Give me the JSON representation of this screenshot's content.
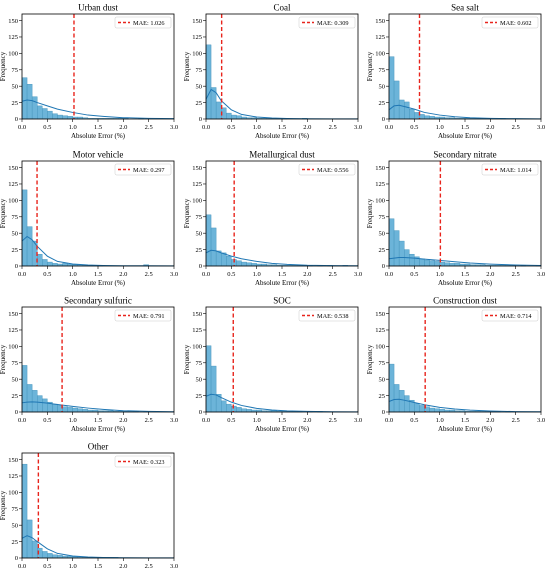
{
  "figure": {
    "colors": {
      "bar_fill": "#6cb4d9",
      "bar_edge": "#3f8fb8",
      "kde_line": "#1f77b4",
      "mae_line": "#e8241c",
      "axis": "#000000"
    }
  },
  "chart_data": [
    {
      "type": "histogram",
      "title": "Urban dust",
      "xlabel": "Absolute Error (%)",
      "ylabel": "Frequency",
      "xlim": [
        0,
        3
      ],
      "ylim": [
        0,
        160
      ],
      "xticks": [
        "0.0",
        "0.5",
        "1.0",
        "1.5",
        "2.0",
        "2.5",
        "3.0"
      ],
      "yticks": [
        "0",
        "25",
        "50",
        "75",
        "100",
        "125",
        "150"
      ],
      "bin_width": 0.1,
      "counts": [
        63,
        53,
        34,
        20,
        16,
        12,
        8,
        6,
        5,
        4,
        3,
        3,
        2,
        1,
        1,
        1,
        1,
        1,
        1,
        1,
        1,
        0,
        0,
        1,
        0,
        0,
        0,
        0,
        0,
        0
      ],
      "kde": [
        [
          0,
          27
        ],
        [
          0.1,
          29
        ],
        [
          0.2,
          28
        ],
        [
          0.3,
          25
        ],
        [
          0.5,
          20
        ],
        [
          0.7,
          15
        ],
        [
          1.0,
          10
        ],
        [
          1.3,
          6
        ],
        [
          1.6,
          4
        ],
        [
          2.0,
          2
        ],
        [
          2.5,
          1
        ],
        [
          3.0,
          0.5
        ]
      ],
      "mae": 1.026,
      "legend": "MAE: 1.026",
      "legend_position": "upper right"
    },
    {
      "type": "histogram",
      "title": "Coal",
      "xlabel": "Absolute Error (%)",
      "ylabel": "Frequency",
      "xlim": [
        0,
        3
      ],
      "ylim": [
        0,
        160
      ],
      "xticks": [
        "0.0",
        "0.5",
        "1.0",
        "1.5",
        "2.0",
        "2.5",
        "3.0"
      ],
      "yticks": [
        "0",
        "25",
        "50",
        "75",
        "100",
        "125",
        "150"
      ],
      "bin_width": 0.1,
      "counts": [
        113,
        48,
        26,
        17,
        9,
        6,
        5,
        3,
        2,
        2,
        1,
        1,
        1,
        1,
        1,
        1,
        0,
        0,
        0,
        1,
        0,
        0,
        0,
        0,
        0,
        0,
        0,
        0,
        0,
        0
      ],
      "kde": [
        [
          0,
          30
        ],
        [
          0.1,
          45
        ],
        [
          0.2,
          40
        ],
        [
          0.3,
          28
        ],
        [
          0.5,
          14
        ],
        [
          0.7,
          7
        ],
        [
          1.0,
          3
        ],
        [
          1.3,
          1.5
        ],
        [
          1.6,
          0.8
        ],
        [
          2.0,
          0.4
        ],
        [
          2.5,
          0.2
        ],
        [
          3.0,
          0.1
        ]
      ],
      "mae": 0.309,
      "legend": "MAE: 0.309",
      "legend_position": "upper right"
    },
    {
      "type": "histogram",
      "title": "Sea salt",
      "xlabel": "Absolute Error (%)",
      "ylabel": "Frequency",
      "xlim": [
        0,
        3
      ],
      "ylim": [
        0,
        160
      ],
      "xticks": [
        "0.0",
        "0.5",
        "1.0",
        "1.5",
        "2.0",
        "2.5",
        "3.0"
      ],
      "yticks": [
        "0",
        "25",
        "50",
        "75",
        "100",
        "125",
        "150"
      ],
      "bin_width": 0.1,
      "counts": [
        95,
        58,
        29,
        26,
        15,
        10,
        7,
        5,
        4,
        3,
        3,
        2,
        2,
        1,
        1,
        1,
        1,
        1,
        1,
        1,
        0,
        0,
        1,
        0,
        0,
        0,
        0,
        0,
        0,
        0
      ],
      "kde": [
        [
          0,
          14
        ],
        [
          0.1,
          20
        ],
        [
          0.2,
          21
        ],
        [
          0.3,
          19
        ],
        [
          0.5,
          15
        ],
        [
          0.7,
          10
        ],
        [
          1.0,
          6
        ],
        [
          1.3,
          3.5
        ],
        [
          1.6,
          2
        ],
        [
          2.0,
          1
        ],
        [
          2.5,
          0.5
        ],
        [
          3.0,
          0.2
        ]
      ],
      "mae": 0.602,
      "legend": "MAE: 0.602",
      "legend_position": "upper right"
    },
    {
      "type": "histogram",
      "title": "Motor vehicle",
      "xlabel": "Absolute Error (%)",
      "ylabel": "Frequency",
      "xlim": [
        0,
        3
      ],
      "ylim": [
        0,
        160
      ],
      "xticks": [
        "0.0",
        "0.5",
        "1.0",
        "1.5",
        "2.0",
        "2.5",
        "3.0"
      ],
      "yticks": [
        "0",
        "25",
        "50",
        "75",
        "100",
        "125",
        "150"
      ],
      "bin_width": 0.1,
      "counts": [
        116,
        60,
        38,
        18,
        10,
        6,
        4,
        3,
        4,
        3,
        2,
        2,
        1,
        1,
        1,
        1,
        0,
        0,
        0,
        0,
        0,
        0,
        0,
        0,
        2,
        0,
        0,
        0,
        0,
        0
      ],
      "kde": [
        [
          0,
          38
        ],
        [
          0.1,
          45
        ],
        [
          0.2,
          40
        ],
        [
          0.3,
          30
        ],
        [
          0.5,
          15
        ],
        [
          0.7,
          7
        ],
        [
          1.0,
          3
        ],
        [
          1.3,
          1.5
        ],
        [
          1.6,
          0.8
        ],
        [
          2.0,
          0.4
        ],
        [
          2.5,
          0.3
        ],
        [
          3.0,
          0.1
        ]
      ],
      "mae": 0.297,
      "legend": "MAE: 0.297",
      "legend_position": "upper right"
    },
    {
      "type": "histogram",
      "title": "Metallurgical dust",
      "xlabel": "Absolute Error (%)",
      "ylabel": "Frequency",
      "xlim": [
        0,
        3
      ],
      "ylim": [
        0,
        160
      ],
      "xticks": [
        "0.0",
        "0.5",
        "1.0",
        "1.5",
        "2.0",
        "2.5",
        "3.0"
      ],
      "yticks": [
        "0",
        "25",
        "50",
        "75",
        "100",
        "125",
        "150"
      ],
      "bin_width": 0.1,
      "counts": [
        78,
        58,
        23,
        20,
        15,
        10,
        8,
        6,
        5,
        4,
        3,
        3,
        2,
        2,
        1,
        1,
        1,
        1,
        1,
        1,
        1,
        0,
        1,
        0,
        1,
        0,
        0,
        1,
        0,
        0
      ],
      "kde": [
        [
          0,
          20
        ],
        [
          0.1,
          24
        ],
        [
          0.2,
          23
        ],
        [
          0.3,
          20
        ],
        [
          0.5,
          15
        ],
        [
          0.7,
          11
        ],
        [
          1.0,
          7
        ],
        [
          1.3,
          4
        ],
        [
          1.6,
          2.5
        ],
        [
          2.0,
          1.2
        ],
        [
          2.5,
          0.6
        ],
        [
          3.0,
          0.3
        ]
      ],
      "mae": 0.556,
      "legend": "MAE: 0.556",
      "legend_position": "upper right"
    },
    {
      "type": "histogram",
      "title": "Secondary nitrate",
      "xlabel": "Absolute Error (%)",
      "ylabel": "Frequency",
      "xlim": [
        0,
        3
      ],
      "ylim": [
        0,
        160
      ],
      "xticks": [
        "0.0",
        "0.5",
        "1.0",
        "1.5",
        "2.0",
        "2.5",
        "3.0"
      ],
      "yticks": [
        "0",
        "25",
        "50",
        "75",
        "100",
        "125",
        "150"
      ],
      "bin_width": 0.1,
      "counts": [
        72,
        54,
        38,
        25,
        18,
        14,
        11,
        9,
        8,
        7,
        6,
        5,
        4,
        4,
        3,
        3,
        2,
        2,
        2,
        1,
        1,
        1,
        1,
        1,
        1,
        0,
        1,
        0,
        0,
        1
      ],
      "kde": [
        [
          0,
          11
        ],
        [
          0.1,
          12
        ],
        [
          0.2,
          13
        ],
        [
          0.3,
          13
        ],
        [
          0.5,
          12
        ],
        [
          0.7,
          10.5
        ],
        [
          1.0,
          8.5
        ],
        [
          1.3,
          6.5
        ],
        [
          1.6,
          4.5
        ],
        [
          2.0,
          2.8
        ],
        [
          2.5,
          1.5
        ],
        [
          3.0,
          0.8
        ]
      ],
      "mae": 1.014,
      "legend": "MAE: 1.014",
      "legend_position": "upper right"
    },
    {
      "type": "histogram",
      "title": "Secondary sulfuric",
      "xlabel": "Absolute Error (%)",
      "ylabel": "Frequency",
      "xlim": [
        0,
        3
      ],
      "ylim": [
        0,
        160
      ],
      "xticks": [
        "0.0",
        "0.5",
        "1.0",
        "1.5",
        "2.0",
        "2.5",
        "3.0"
      ],
      "yticks": [
        "0",
        "25",
        "50",
        "75",
        "100",
        "125",
        "150"
      ],
      "bin_width": 0.1,
      "counts": [
        71,
        42,
        33,
        25,
        20,
        15,
        12,
        10,
        8,
        7,
        6,
        5,
        4,
        3,
        3,
        2,
        2,
        2,
        1,
        1,
        1,
        1,
        1,
        0,
        1,
        0,
        0,
        0,
        0,
        0
      ],
      "kde": [
        [
          0,
          14
        ],
        [
          0.1,
          15
        ],
        [
          0.2,
          15.5
        ],
        [
          0.3,
          15
        ],
        [
          0.5,
          13.5
        ],
        [
          0.7,
          11.5
        ],
        [
          1.0,
          8.5
        ],
        [
          1.3,
          6
        ],
        [
          1.6,
          4
        ],
        [
          2.0,
          2
        ],
        [
          2.5,
          0.9
        ],
        [
          3.0,
          0.4
        ]
      ],
      "mae": 0.791,
      "legend": "MAE: 0.791",
      "legend_position": "upper right"
    },
    {
      "type": "histogram",
      "title": "SOC",
      "xlabel": "Absolute Error (%)",
      "ylabel": "Frequency",
      "xlim": [
        0,
        3
      ],
      "ylim": [
        0,
        160
      ],
      "xticks": [
        "0.0",
        "0.5",
        "1.0",
        "1.5",
        "2.0",
        "2.5",
        "3.0"
      ],
      "yticks": [
        "0",
        "25",
        "50",
        "75",
        "100",
        "125",
        "150"
      ],
      "bin_width": 0.1,
      "counts": [
        101,
        70,
        27,
        17,
        12,
        9,
        7,
        5,
        4,
        3,
        3,
        2,
        2,
        2,
        1,
        1,
        1,
        1,
        1,
        0,
        1,
        0,
        1,
        0,
        0,
        0,
        0,
        0,
        0,
        0
      ],
      "kde": [
        [
          0,
          24
        ],
        [
          0.1,
          27
        ],
        [
          0.2,
          26
        ],
        [
          0.3,
          22
        ],
        [
          0.5,
          15
        ],
        [
          0.7,
          10
        ],
        [
          1.0,
          5.5
        ],
        [
          1.3,
          3
        ],
        [
          1.6,
          1.8
        ],
        [
          2.0,
          0.9
        ],
        [
          2.5,
          0.4
        ],
        [
          3.0,
          0.2
        ]
      ],
      "mae": 0.538,
      "legend": "MAE: 0.538",
      "legend_position": "upper right"
    },
    {
      "type": "histogram",
      "title": "Construction dust",
      "xlabel": "Absolute Error (%)",
      "ylabel": "Frequency",
      "xlim": [
        0,
        3
      ],
      "ylim": [
        0,
        160
      ],
      "xticks": [
        "0.0",
        "0.5",
        "1.0",
        "1.5",
        "2.0",
        "2.5",
        "3.0"
      ],
      "yticks": [
        "0",
        "25",
        "50",
        "75",
        "100",
        "125",
        "150"
      ],
      "bin_width": 0.1,
      "counts": [
        73,
        42,
        33,
        25,
        18,
        13,
        10,
        8,
        6,
        5,
        4,
        3,
        3,
        2,
        2,
        1,
        1,
        1,
        1,
        1,
        1,
        1,
        0,
        1,
        0,
        0,
        0,
        0,
        0,
        0
      ],
      "kde": [
        [
          0,
          16
        ],
        [
          0.1,
          19
        ],
        [
          0.2,
          19.5
        ],
        [
          0.3,
          18
        ],
        [
          0.5,
          14.5
        ],
        [
          0.7,
          11
        ],
        [
          1.0,
          7
        ],
        [
          1.3,
          4.5
        ],
        [
          1.6,
          2.8
        ],
        [
          2.0,
          1.5
        ],
        [
          2.5,
          0.6
        ],
        [
          3.0,
          0.3
        ]
      ],
      "mae": 0.714,
      "legend": "MAE: 0.714",
      "legend_position": "upper right"
    },
    {
      "type": "histogram",
      "title": "Other",
      "xlabel": "Absolute Error (%)",
      "ylabel": "Frequency",
      "xlim": [
        0,
        3
      ],
      "ylim": [
        0,
        160
      ],
      "xticks": [
        "0.0",
        "0.5",
        "1.0",
        "1.5",
        "2.0",
        "2.5",
        "3.0"
      ],
      "yticks": [
        "0",
        "25",
        "50",
        "75",
        "100",
        "125",
        "150"
      ],
      "bin_width": 0.1,
      "counts": [
        143,
        58,
        26,
        15,
        10,
        7,
        5,
        4,
        3,
        3,
        2,
        2,
        1,
        1,
        1,
        1,
        1,
        1,
        1,
        0,
        0,
        0,
        0,
        0,
        0,
        0,
        0,
        0,
        0,
        0
      ],
      "kde": [
        [
          0,
          30
        ],
        [
          0.1,
          34
        ],
        [
          0.2,
          31
        ],
        [
          0.3,
          25
        ],
        [
          0.5,
          14
        ],
        [
          0.7,
          7
        ],
        [
          1.0,
          3
        ],
        [
          1.3,
          1.5
        ],
        [
          1.6,
          0.8
        ],
        [
          2.0,
          0.4
        ],
        [
          2.5,
          0.2
        ],
        [
          3.0,
          0.1
        ]
      ],
      "mae": 0.323,
      "legend": "MAE: 0.323",
      "legend_position": "upper right"
    }
  ]
}
